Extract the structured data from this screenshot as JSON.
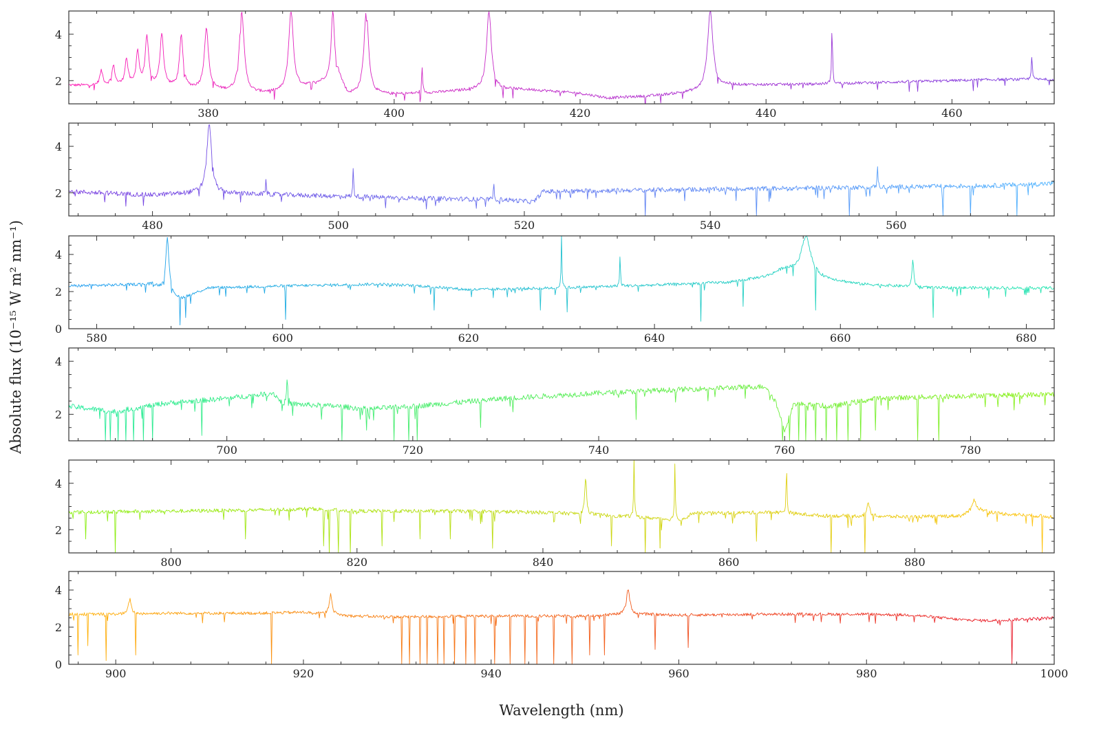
{
  "chart_data": {
    "type": "line",
    "xlabel": "Wavelength (nm)",
    "ylabel": "Absolute flux (10⁻¹⁵ W m² nm⁻¹)",
    "grid": false,
    "legend": "none",
    "panels": [
      {
        "xlim": [
          365,
          471
        ],
        "ylim": [
          1.0,
          5.0
        ],
        "xticks": [
          380,
          400,
          420,
          440,
          460
        ],
        "yticks": [
          2,
          4
        ],
        "color_start": "#ff1ab3",
        "color_end": "#7a3de0",
        "baseline": [
          [
            365,
            1.8
          ],
          [
            375,
            1.75
          ],
          [
            385,
            1.45
          ],
          [
            388,
            1.5
          ],
          [
            392,
            1.9
          ],
          [
            394,
            2.2
          ],
          [
            395,
            1.4
          ],
          [
            400,
            1.4
          ],
          [
            405,
            1.5
          ],
          [
            410,
            1.65
          ],
          [
            415,
            1.6
          ],
          [
            420,
            1.45
          ],
          [
            423,
            1.25
          ],
          [
            428,
            1.35
          ],
          [
            433,
            1.55
          ],
          [
            436,
            1.8
          ],
          [
            445,
            1.85
          ],
          [
            455,
            1.95
          ],
          [
            465,
            2.05
          ],
          [
            471,
            2.05
          ]
        ],
        "noise": 0.06,
        "lines": [
          [
            368.5,
            2.4,
            0.4
          ],
          [
            369.8,
            2.6,
            0.4
          ],
          [
            371.2,
            2.9,
            0.4
          ],
          [
            372.4,
            3.2,
            0.4
          ],
          [
            373.4,
            3.8,
            0.45
          ],
          [
            375.0,
            4.0,
            0.45
          ],
          [
            377.1,
            3.9,
            0.45
          ],
          [
            379.8,
            4.2,
            0.55
          ],
          [
            383.6,
            5.0,
            0.6
          ],
          [
            388.9,
            5.0,
            0.6
          ],
          [
            393.4,
            5.0,
            0.4
          ],
          [
            397.0,
            5.0,
            0.6
          ],
          [
            403.0,
            2.5,
            0.15
          ],
          [
            410.2,
            5.0,
            0.6
          ],
          [
            434.0,
            5.0,
            0.7
          ],
          [
            447.1,
            4.4,
            0.12
          ],
          [
            468.6,
            3.2,
            0.12
          ]
        ],
        "absorptions": []
      },
      {
        "xlim": [
          471,
          577
        ],
        "ylim": [
          1.0,
          5.0
        ],
        "xticks": [
          480,
          500,
          520,
          540,
          560
        ],
        "yticks": [
          2,
          4
        ],
        "color_start": "#7a3de0",
        "color_end": "#4db3ff",
        "baseline": [
          [
            471,
            2.05
          ],
          [
            480,
            1.9
          ],
          [
            485,
            2.0
          ],
          [
            490,
            1.95
          ],
          [
            500,
            1.85
          ],
          [
            510,
            1.75
          ],
          [
            518,
            1.7
          ],
          [
            521,
            1.6
          ],
          [
            522,
            2.05
          ],
          [
            530,
            2.1
          ],
          [
            540,
            2.15
          ],
          [
            550,
            2.2
          ],
          [
            560,
            2.25
          ],
          [
            570,
            2.3
          ],
          [
            577,
            2.4
          ]
        ],
        "noise": 0.1,
        "lines": [
          [
            486.1,
            5.0,
            0.6
          ],
          [
            492.2,
            2.6,
            0.1
          ],
          [
            501.6,
            3.1,
            0.1
          ],
          [
            516.7,
            2.5,
            0.1
          ],
          [
            558.0,
            3.2,
            0.1
          ]
        ],
        "absorptions": [
          [
            533,
            1.0
          ],
          [
            545,
            1.0
          ],
          [
            555,
            1.0
          ],
          [
            565,
            1.0
          ],
          [
            568,
            1.0
          ],
          [
            573,
            1.0
          ]
        ]
      },
      {
        "xlim": [
          577,
          683
        ],
        "ylim": [
          0.0,
          5.0
        ],
        "xticks": [
          580,
          600,
          620,
          640,
          660,
          680
        ],
        "yticks": [
          0,
          2,
          4
        ],
        "color_start": "#1f9cf0",
        "color_end": "#26e6b0",
        "baseline": [
          [
            577,
            2.3
          ],
          [
            586,
            2.4
          ],
          [
            589,
            1.6
          ],
          [
            592,
            2.2
          ],
          [
            600,
            2.3
          ],
          [
            610,
            2.4
          ],
          [
            615,
            2.3
          ],
          [
            620,
            2.1
          ],
          [
            630,
            2.2
          ],
          [
            640,
            2.35
          ],
          [
            648,
            2.5
          ],
          [
            652,
            2.8
          ],
          [
            654,
            3.2
          ],
          [
            658,
            2.7
          ],
          [
            662,
            2.4
          ],
          [
            670,
            2.2
          ],
          [
            683,
            2.2
          ]
        ],
        "noise": 0.08,
        "lines": [
          [
            587.6,
            5.0,
            0.4
          ],
          [
            630.0,
            5.0,
            0.1
          ],
          [
            636.3,
            4.0,
            0.1
          ],
          [
            656.3,
            5.0,
            1.2
          ],
          [
            667.8,
            3.8,
            0.2
          ]
        ],
        "absorptions": [
          [
            589.0,
            0.2
          ],
          [
            589.6,
            0.6
          ],
          [
            600.3,
            0.5
          ],
          [
            616.3,
            1.0
          ],
          [
            627.7,
            1.0
          ],
          [
            630.6,
            0.9
          ],
          [
            645.0,
            0.4
          ],
          [
            649.5,
            1.2
          ],
          [
            657.3,
            1.0
          ],
          [
            670.0,
            0.6
          ]
        ]
      },
      {
        "xlim": [
          683,
          789
        ],
        "ylim": [
          1.0,
          4.5
        ],
        "xticks": [
          700,
          720,
          740,
          760,
          780
        ],
        "yticks": [
          2,
          4
        ],
        "color_start": "#22eb9c",
        "color_end": "#8af014",
        "baseline": [
          [
            683,
            2.3
          ],
          [
            688,
            2.1
          ],
          [
            693,
            2.4
          ],
          [
            700,
            2.6
          ],
          [
            705,
            2.8
          ],
          [
            706,
            2.4
          ],
          [
            712,
            2.3
          ],
          [
            715,
            2.2
          ],
          [
            720,
            2.3
          ],
          [
            730,
            2.6
          ],
          [
            740,
            2.8
          ],
          [
            750,
            2.95
          ],
          [
            758,
            3.05
          ],
          [
            759,
            2.5
          ],
          [
            760,
            1.4
          ],
          [
            761,
            2.4
          ],
          [
            765,
            2.3
          ],
          [
            770,
            2.6
          ],
          [
            780,
            2.7
          ],
          [
            789,
            2.75
          ]
        ],
        "noise": 0.1,
        "lines": [
          [
            706.5,
            3.4,
            0.15
          ]
        ],
        "absorptions": [
          [
            686.9,
            1.0
          ],
          [
            687.5,
            1.0
          ],
          [
            688.3,
            1.0
          ],
          [
            689.1,
            1.0
          ],
          [
            690.0,
            1.0
          ],
          [
            691.0,
            1.0
          ],
          [
            692.0,
            1.0
          ],
          [
            697.3,
            1.2
          ],
          [
            712.4,
            1.0
          ],
          [
            715.0,
            1.4
          ],
          [
            718.0,
            1.0
          ],
          [
            719.6,
            1.0
          ],
          [
            720.5,
            1.0
          ],
          [
            727.3,
            1.5
          ],
          [
            744.0,
            1.8
          ],
          [
            759.8,
            1.0
          ],
          [
            760.5,
            1.0
          ],
          [
            761.5,
            1.0
          ],
          [
            762.3,
            1.0
          ],
          [
            763.3,
            1.0
          ],
          [
            764.5,
            1.0
          ],
          [
            765.6,
            1.0
          ],
          [
            766.8,
            1.0
          ],
          [
            768.2,
            1.0
          ],
          [
            769.8,
            1.4
          ],
          [
            774.3,
            1.0
          ],
          [
            776.6,
            1.0
          ]
        ]
      },
      {
        "xlim": [
          789,
          895
        ],
        "ylim": [
          1.0,
          5.0
        ],
        "xticks": [
          800,
          820,
          840,
          860,
          880
        ],
        "yticks": [
          2,
          4
        ],
        "color_start": "#8af014",
        "color_end": "#ffc20f",
        "baseline": [
          [
            789,
            2.75
          ],
          [
            800,
            2.8
          ],
          [
            810,
            2.85
          ],
          [
            815,
            2.9
          ],
          [
            820,
            2.8
          ],
          [
            830,
            2.8
          ],
          [
            840,
            2.75
          ],
          [
            845,
            2.65
          ],
          [
            850,
            2.55
          ],
          [
            855,
            2.4
          ],
          [
            856,
            2.7
          ],
          [
            865,
            2.75
          ],
          [
            870,
            2.6
          ],
          [
            880,
            2.55
          ],
          [
            885,
            2.6
          ],
          [
            886.5,
            2.9
          ],
          [
            889,
            2.7
          ],
          [
            895,
            2.55
          ]
        ],
        "noise": 0.08,
        "lines": [
          [
            844.6,
            4.2,
            0.25
          ],
          [
            849.8,
            5.0,
            0.1
          ],
          [
            854.2,
            5.0,
            0.1
          ],
          [
            866.2,
            5.0,
            0.1
          ],
          [
            875.0,
            3.1,
            0.4
          ],
          [
            886.4,
            3.3,
            0.4
          ]
        ],
        "absorptions": [
          [
            790.8,
            1.6
          ],
          [
            794.0,
            1.0
          ],
          [
            808.0,
            1.6
          ],
          [
            816.4,
            1.3
          ],
          [
            817.0,
            1.0
          ],
          [
            818.0,
            1.0
          ],
          [
            819.3,
            1.0
          ],
          [
            822.7,
            1.3
          ],
          [
            826.8,
            1.6
          ],
          [
            830.0,
            1.6
          ],
          [
            834.6,
            1.2
          ],
          [
            847.4,
            1.3
          ],
          [
            851.0,
            1.0
          ],
          [
            852.6,
            1.2
          ],
          [
            863.0,
            1.5
          ],
          [
            871.0,
            1.0
          ],
          [
            874.6,
            1.0
          ],
          [
            893.7,
            1.0
          ]
        ]
      },
      {
        "xlim": [
          895,
          1000
        ],
        "ylim": [
          0.0,
          5.0
        ],
        "xticks": [
          900,
          920,
          940,
          960,
          980,
          1000
        ],
        "yticks": [
          0,
          2,
          4
        ],
        "color_start": "#ffb30a",
        "color_end": "#e8142a",
        "baseline": [
          [
            895,
            2.7
          ],
          [
            901,
            2.7
          ],
          [
            905,
            2.75
          ],
          [
            915,
            2.75
          ],
          [
            920,
            2.8
          ],
          [
            925,
            2.6
          ],
          [
            930,
            2.55
          ],
          [
            940,
            2.6
          ],
          [
            950,
            2.6
          ],
          [
            955,
            2.7
          ],
          [
            960,
            2.65
          ],
          [
            970,
            2.7
          ],
          [
            980,
            2.7
          ],
          [
            985,
            2.65
          ],
          [
            990,
            2.4
          ],
          [
            993,
            2.35
          ],
          [
            1000,
            2.5
          ]
        ],
        "noise": 0.08,
        "lines": [
          [
            901.5,
            3.5,
            0.35
          ],
          [
            922.9,
            3.8,
            0.35
          ],
          [
            954.6,
            4.0,
            0.45
          ]
        ],
        "absorptions": [
          [
            896.0,
            0.5
          ],
          [
            897.0,
            1.0
          ],
          [
            899.0,
            0.2
          ],
          [
            902.1,
            0.5
          ],
          [
            916.6,
            0.0
          ],
          [
            930.5,
            0.0
          ],
          [
            931.3,
            0.0
          ],
          [
            932.4,
            0.0
          ],
          [
            933.2,
            0.0
          ],
          [
            934.3,
            0.0
          ],
          [
            935.0,
            0.0
          ],
          [
            936.1,
            0.0
          ],
          [
            937.3,
            0.0
          ],
          [
            938.3,
            0.0
          ],
          [
            940.4,
            0.0
          ],
          [
            942.0,
            0.0
          ],
          [
            943.6,
            0.0
          ],
          [
            944.9,
            0.0
          ],
          [
            946.7,
            0.0
          ],
          [
            948.6,
            0.0
          ],
          [
            950.5,
            0.5
          ],
          [
            952.1,
            0.5
          ],
          [
            957.5,
            0.8
          ],
          [
            961.0,
            0.9
          ],
          [
            995.5,
            0.0
          ]
        ]
      }
    ]
  }
}
